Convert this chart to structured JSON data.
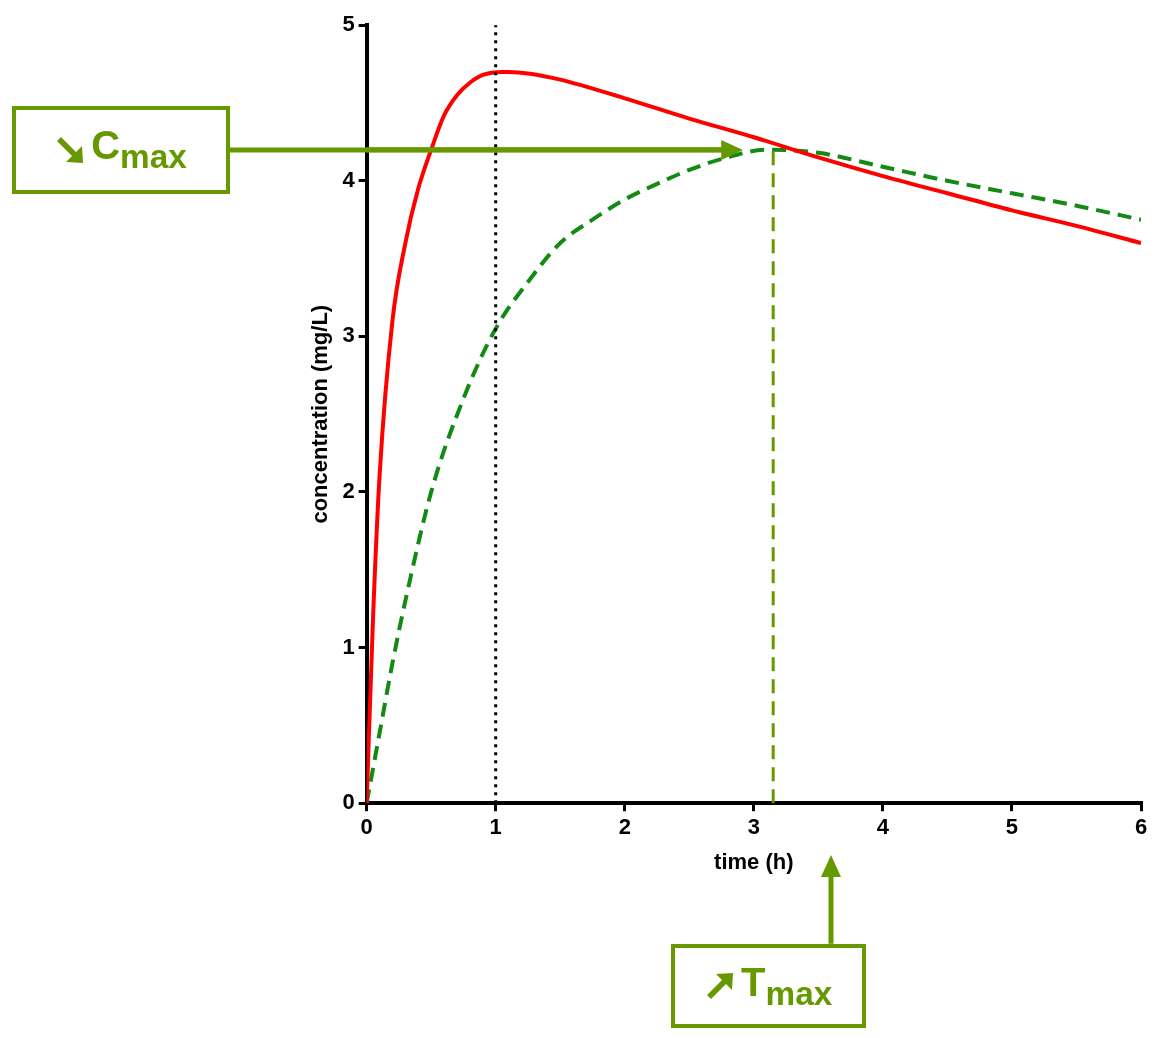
{
  "chart_data": {
    "type": "line",
    "xlabel": "time (h)",
    "ylabel": "concentration (mg/L)",
    "xlim": [
      0,
      6
    ],
    "xticks": [
      0,
      1,
      2,
      3,
      4,
      5,
      6
    ],
    "ylim": [
      0,
      5
    ],
    "yticks": [
      0,
      1,
      2,
      3,
      4,
      5
    ],
    "grid": false,
    "legend": false,
    "marker": "none",
    "series": [
      {
        "color": "#ff0000",
        "line_style": "solid",
        "x": [
          0,
          0.05,
          0.1,
          0.2,
          0.3,
          0.4,
          0.5,
          0.6,
          0.7,
          0.8,
          0.9,
          1.05,
          1.25,
          1.5,
          2,
          2.5,
          3,
          3.5,
          4,
          4.5,
          5,
          5.5,
          6
        ],
        "values": [
          0,
          1.2,
          2.1,
          3.1,
          3.6,
          3.95,
          4.2,
          4.42,
          4.55,
          4.63,
          4.68,
          4.7,
          4.69,
          4.65,
          4.53,
          4.4,
          4.28,
          4.15,
          4.03,
          3.92,
          3.81,
          3.71,
          3.6
        ]
      },
      {
        "color": "#138a13",
        "line_style": "dashed",
        "x": [
          0,
          0.1,
          0.2,
          0.3,
          0.5,
          0.75,
          1,
          1.25,
          1.5,
          1.75,
          2,
          2.25,
          2.5,
          2.75,
          3.1,
          3.5,
          4,
          4.5,
          5,
          5.5,
          6
        ],
        "values": [
          0,
          0.45,
          0.9,
          1.3,
          2.0,
          2.6,
          3.05,
          3.35,
          3.6,
          3.75,
          3.88,
          3.98,
          4.07,
          4.14,
          4.2,
          4.18,
          4.09,
          4.0,
          3.92,
          3.84,
          3.75
        ]
      }
    ],
    "ref_lines": [
      {
        "axis": "x",
        "value": 1,
        "color": "#000000",
        "line_style": "dotted"
      },
      {
        "axis": "x",
        "value": 3.15,
        "color": "#669900",
        "line_style": "dashed",
        "label": "T$_{max}$"
      },
      {
        "axis": "y",
        "value": 4.2,
        "color": "#669900",
        "line_style": "solid",
        "label": "C$_{max}$"
      }
    ]
  }
}
